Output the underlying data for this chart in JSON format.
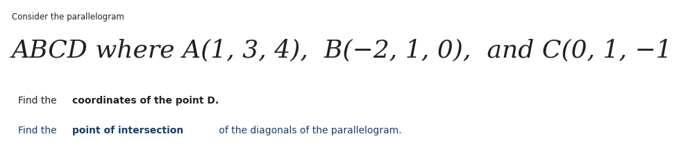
{
  "background_color": "#ffffff",
  "small_text": "Consider the parallelogram",
  "main_line": "ABCD where A(1, 3, 4),  B(−2, 1, 0),  and C(0, 1, −1",
  "body1_normal": "Find the ",
  "body1_bold": "coordinates of the point D.",
  "body2_normal_pre": "Find the ",
  "body2_bold": "point of intersection",
  "body2_normal_post": " of the diagonals of the parallelogram.",
  "small_fontsize": 8.5,
  "main_fontsize": 26,
  "body_fontsize": 10,
  "text_color": "#231f20",
  "body2_color": "#1a3a6b"
}
